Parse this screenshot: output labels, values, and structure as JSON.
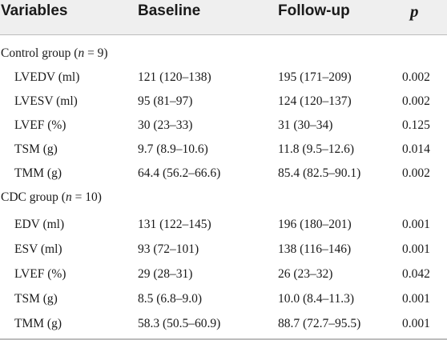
{
  "table": {
    "headers": {
      "variables": "Variables",
      "baseline": "Baseline",
      "followup": "Follow-up",
      "p": "p"
    },
    "groups": [
      {
        "label_prefix": "Control group (",
        "label_n": "n",
        "label_suffix": " = 9)",
        "rows": [
          {
            "variable": "LVEDV (ml)",
            "baseline": "121 (120–138)",
            "followup": "195 (171–209)",
            "p": "0.002"
          },
          {
            "variable": "LVESV (ml)",
            "baseline": "95 (81–97)",
            "followup": "124 (120–137)",
            "p": "0.002"
          },
          {
            "variable": "LVEF (%)",
            "baseline": "30 (23–33)",
            "followup": "31 (30–34)",
            "p": "0.125"
          },
          {
            "variable": "TSM (g)",
            "baseline": "9.7 (8.9–10.6)",
            "followup": "11.8 (9.5–12.6)",
            "p": "0.014"
          },
          {
            "variable": "TMM (g)",
            "baseline": "64.4 (56.2–66.6)",
            "followup": "85.4 (82.5–90.1)",
            "p": "0.002"
          }
        ]
      },
      {
        "label_prefix": "CDC group (",
        "label_n": "n",
        "label_suffix": " = 10)",
        "rows": [
          {
            "variable": "EDV (ml)",
            "baseline": "131 (122–145)",
            "followup": "196 (180–201)",
            "p": "0.001"
          },
          {
            "variable": "ESV (ml)",
            "baseline": "93 (72–101)",
            "followup": "138 (116–146)",
            "p": "0.001"
          },
          {
            "variable": "LVEF (%)",
            "baseline": "29 (28–31)",
            "followup": "26 (23–32)",
            "p": "0.042"
          },
          {
            "variable": "TSM (g)",
            "baseline": "8.5 (6.8–9.0)",
            "followup": "10.0 (8.4–11.3)",
            "p": "0.001"
          },
          {
            "variable": "TMM (g)",
            "baseline": "58.3 (50.5–60.9)",
            "followup": "88.7 (72.7–95.5)",
            "p": "0.001"
          }
        ]
      }
    ]
  }
}
